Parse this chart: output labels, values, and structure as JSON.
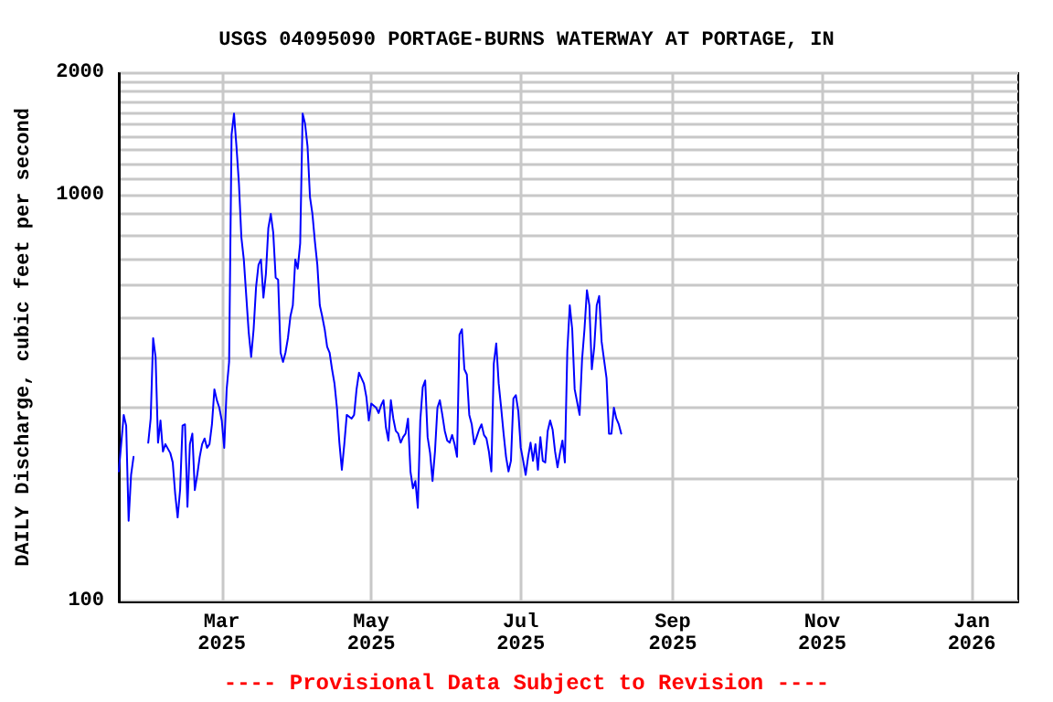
{
  "chart_data": {
    "type": "line",
    "title": "USGS 04095090 PORTAGE-BURNS WATERWAY AT PORTAGE, IN",
    "ylabel": "DAILY Discharge, cubic feet per second",
    "annotations": [
      "---- Provisional Data Subject to Revision ----"
    ],
    "x": [
      "2025-01-18",
      "2025-01-20",
      "2025-01-21",
      "2025-01-22",
      "2025-01-23",
      "2025-01-24",
      "2025-01-26",
      "2025-01-30",
      "2025-01-31",
      "2025-02-01",
      "2025-02-02",
      "2025-02-03",
      "2025-02-04",
      "2025-02-05",
      "2025-02-06",
      "2025-02-08",
      "2025-02-09",
      "2025-02-10",
      "2025-02-11",
      "2025-02-12",
      "2025-02-13",
      "2025-02-14",
      "2025-02-15",
      "2025-02-16",
      "2025-02-17",
      "2025-02-18",
      "2025-02-19",
      "2025-02-20",
      "2025-02-21",
      "2025-02-22",
      "2025-02-23",
      "2025-02-24",
      "2025-02-25",
      "2025-02-26",
      "2025-02-27",
      "2025-02-28",
      "2025-03-01",
      "2025-03-02",
      "2025-03-03",
      "2025-03-04",
      "2025-03-05",
      "2025-03-06",
      "2025-03-07",
      "2025-03-08",
      "2025-03-09",
      "2025-03-10",
      "2025-03-11",
      "2025-03-12",
      "2025-03-13",
      "2025-03-14",
      "2025-03-15",
      "2025-03-16",
      "2025-03-17",
      "2025-03-18",
      "2025-03-19",
      "2025-03-20",
      "2025-03-21",
      "2025-03-22",
      "2025-03-23",
      "2025-03-24",
      "2025-03-25",
      "2025-03-26",
      "2025-03-27",
      "2025-03-28",
      "2025-03-29",
      "2025-03-30",
      "2025-03-31",
      "2025-04-01",
      "2025-04-02",
      "2025-04-03",
      "2025-04-04",
      "2025-04-05",
      "2025-04-06",
      "2025-04-07",
      "2025-04-08",
      "2025-04-09",
      "2025-04-10",
      "2025-04-11",
      "2025-04-12",
      "2025-04-13",
      "2025-04-14",
      "2025-04-15",
      "2025-04-16",
      "2025-04-17",
      "2025-04-18",
      "2025-04-19",
      "2025-04-20",
      "2025-04-21",
      "2025-04-23",
      "2025-04-24",
      "2025-04-25",
      "2025-04-26",
      "2025-04-27",
      "2025-04-28",
      "2025-04-29",
      "2025-04-30",
      "2025-05-01",
      "2025-05-03",
      "2025-05-04",
      "2025-05-05",
      "2025-05-06",
      "2025-05-07",
      "2025-05-08",
      "2025-05-09",
      "2025-05-10",
      "2025-05-11",
      "2025-05-12",
      "2025-05-13",
      "2025-05-14",
      "2025-05-15",
      "2025-05-16",
      "2025-05-17",
      "2025-05-18",
      "2025-05-19",
      "2025-05-20",
      "2025-05-21",
      "2025-05-22",
      "2025-05-23",
      "2025-05-24",
      "2025-05-25",
      "2025-05-26",
      "2025-05-27",
      "2025-05-28",
      "2025-05-29",
      "2025-05-30",
      "2025-05-31",
      "2025-06-01",
      "2025-06-02",
      "2025-06-03",
      "2025-06-04",
      "2025-06-05",
      "2025-06-06",
      "2025-06-07",
      "2025-06-08",
      "2025-06-09",
      "2025-06-10",
      "2025-06-11",
      "2025-06-12",
      "2025-06-13",
      "2025-06-14",
      "2025-06-15",
      "2025-06-16",
      "2025-06-17",
      "2025-06-18",
      "2025-06-19",
      "2025-06-20",
      "2025-06-21",
      "2025-06-22",
      "2025-06-23",
      "2025-06-24",
      "2025-06-25",
      "2025-06-26",
      "2025-06-27",
      "2025-06-28",
      "2025-06-29",
      "2025-06-30",
      "2025-07-01",
      "2025-07-02",
      "2025-07-03",
      "2025-07-04",
      "2025-07-05",
      "2025-07-06",
      "2025-07-07",
      "2025-07-08",
      "2025-07-09",
      "2025-07-10",
      "2025-07-11",
      "2025-07-12",
      "2025-07-13",
      "2025-07-14",
      "2025-07-15",
      "2025-07-16",
      "2025-07-17",
      "2025-07-18",
      "2025-07-19",
      "2025-07-20",
      "2025-07-21",
      "2025-07-22",
      "2025-07-23",
      "2025-07-24",
      "2025-07-25",
      "2025-07-26",
      "2025-07-27",
      "2025-07-28",
      "2025-07-29",
      "2025-07-30",
      "2025-07-31",
      "2025-08-01",
      "2025-08-02",
      "2025-08-03",
      "2025-08-04",
      "2025-08-05",
      "2025-08-06",
      "2025-08-07",
      "2025-08-08",
      "2025-08-09",
      "2025-08-10",
      "2025-08-11"
    ],
    "series": [
      {
        "color": "#0000ff",
        "values": [
          209,
          288,
          271,
          158,
          205,
          227,
          null,
          246,
          282,
          445,
          400,
          246,
          279,
          234,
          244,
          232,
          220,
          184,
          161,
          188,
          271,
          273,
          171,
          244,
          259,
          188,
          205,
          227,
          244,
          252,
          239,
          244,
          273,
          333,
          313,
          300,
          279,
          239,
          333,
          389,
          1410,
          1590,
          1320,
          1070,
          788,
          695,
          565,
          460,
          400,
          468,
          595,
          675,
          695,
          560,
          640,
          830,
          900,
          810,
          627,
          620,
          410,
          389,
          410,
          445,
          503,
          536,
          695,
          660,
          762,
          1590,
          1500,
          1320,
          990,
          900,
          770,
          675,
          536,
          503,
          468,
          424,
          410,
          373,
          344,
          300,
          246,
          211,
          244,
          288,
          282,
          288,
          333,
          366,
          355,
          344,
          319,
          279,
          307,
          300,
          291,
          304,
          313,
          268,
          249,
          313,
          282,
          263,
          259,
          246,
          254,
          259,
          282,
          209,
          190,
          198,
          170,
          279,
          337,
          350,
          254,
          232,
          198,
          234,
          300,
          313,
          288,
          263,
          249,
          246,
          257,
          244,
          227,
          454,
          468,
          373,
          362,
          288,
          273,
          244,
          254,
          265,
          273,
          257,
          252,
          234,
          209,
          385,
          432,
          344,
          300,
          259,
          227,
          209,
          222,
          316,
          322,
          294,
          239,
          222,
          205,
          227,
          246,
          222,
          244,
          211,
          254,
          222,
          220,
          263,
          279,
          265,
          234,
          214,
          232,
          249,
          220,
          414,
          536,
          468,
          333,
          310,
          288,
          393,
          468,
          584,
          536,
          373,
          424,
          536,
          565,
          436,
          393,
          355,
          259,
          259,
          300,
          282,
          273,
          259
        ]
      }
    ],
    "xlim": [
      "2025-01-18",
      "2026-01-20"
    ],
    "xticks": [
      {
        "value": "2025-03-01",
        "label": "Mar\n2025"
      },
      {
        "value": "2025-05-01",
        "label": "May\n2025"
      },
      {
        "value": "2025-07-01",
        "label": "Jul\n2025"
      },
      {
        "value": "2025-09-01",
        "label": "Sep\n2025"
      },
      {
        "value": "2025-11-01",
        "label": "Nov\n2025"
      },
      {
        "value": "2026-01-01",
        "label": "Jan\n2026"
      }
    ],
    "ylim": [
      100,
      2000
    ],
    "log": "y",
    "yticks": [
      100,
      {
        "value": 200,
        "label": null
      },
      {
        "value": 300,
        "label": null
      },
      {
        "value": 400,
        "label": null
      },
      {
        "value": 500,
        "label": null
      },
      {
        "value": 600,
        "label": null
      },
      {
        "value": 700,
        "label": null
      },
      {
        "value": 800,
        "label": null
      },
      {
        "value": 900,
        "label": null
      },
      1000,
      {
        "value": 1100,
        "label": null
      },
      {
        "value": 1200,
        "label": null
      },
      {
        "value": 1300,
        "label": null
      },
      {
        "value": 1400,
        "label": null
      },
      {
        "value": 1500,
        "label": null
      },
      {
        "value": 1600,
        "label": null
      },
      {
        "value": 1700,
        "label": null
      },
      {
        "value": 1800,
        "label": null
      },
      {
        "value": 1900,
        "label": null
      },
      2000
    ],
    "grid": true,
    "marker": "none",
    "line_style": "solid"
  }
}
